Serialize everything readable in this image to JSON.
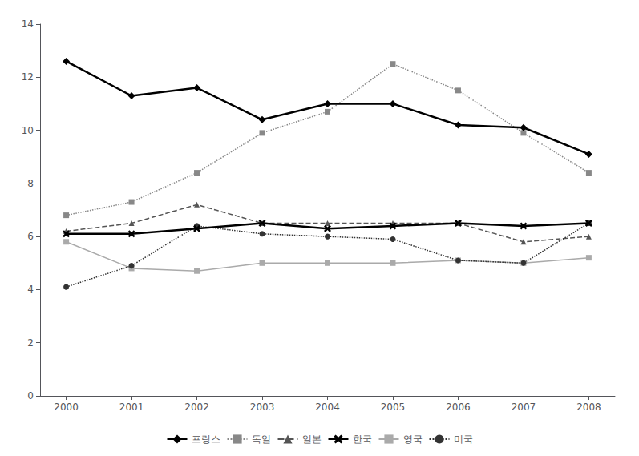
{
  "chart_data": {
    "type": "line",
    "x": [
      2000,
      2001,
      2002,
      2003,
      2004,
      2005,
      2006,
      2007,
      2008
    ],
    "xlim": [
      1999.6,
      2008.4
    ],
    "xticks": [
      2000,
      2001,
      2002,
      2003,
      2004,
      2005,
      2006,
      2007,
      2008
    ],
    "ylim": [
      0,
      14
    ],
    "yticks": [
      0,
      2,
      4,
      6,
      8,
      10,
      12,
      14
    ],
    "grid": false,
    "legend": "bottom",
    "series": [
      {
        "name": "프랑스",
        "color": "#000000",
        "marker": "diamond",
        "line_style": "solid",
        "values": [
          12.6,
          11.3,
          11.6,
          10.4,
          11.0,
          11.0,
          10.2,
          10.1,
          9.1
        ]
      },
      {
        "name": "독일",
        "color": "#888888",
        "marker": "square",
        "line_style": "dotted",
        "values": [
          6.8,
          7.3,
          8.4,
          9.9,
          10.7,
          12.5,
          11.5,
          9.9,
          8.4
        ]
      },
      {
        "name": "일본",
        "color": "#555555",
        "marker": "triangle",
        "line_style": "dashed",
        "values": [
          6.2,
          6.5,
          7.2,
          6.5,
          6.5,
          6.5,
          6.5,
          5.8,
          6.0
        ]
      },
      {
        "name": "한국",
        "color": "#000000",
        "marker": "x",
        "line_style": "solid",
        "values": [
          6.1,
          6.1,
          6.3,
          6.5,
          6.3,
          6.4,
          6.5,
          6.4,
          6.5
        ]
      },
      {
        "name": "영국",
        "color": "#aaaaaa",
        "marker": "square",
        "line_style": "solid",
        "values": [
          5.8,
          4.8,
          4.7,
          5.0,
          5.0,
          5.0,
          5.1,
          5.0,
          5.2
        ]
      },
      {
        "name": "미국",
        "color": "#333333",
        "marker": "circle",
        "line_style": "dotted",
        "values": [
          4.1,
          4.9,
          6.4,
          6.1,
          6.0,
          5.9,
          5.1,
          5.0,
          6.5
        ]
      }
    ]
  }
}
